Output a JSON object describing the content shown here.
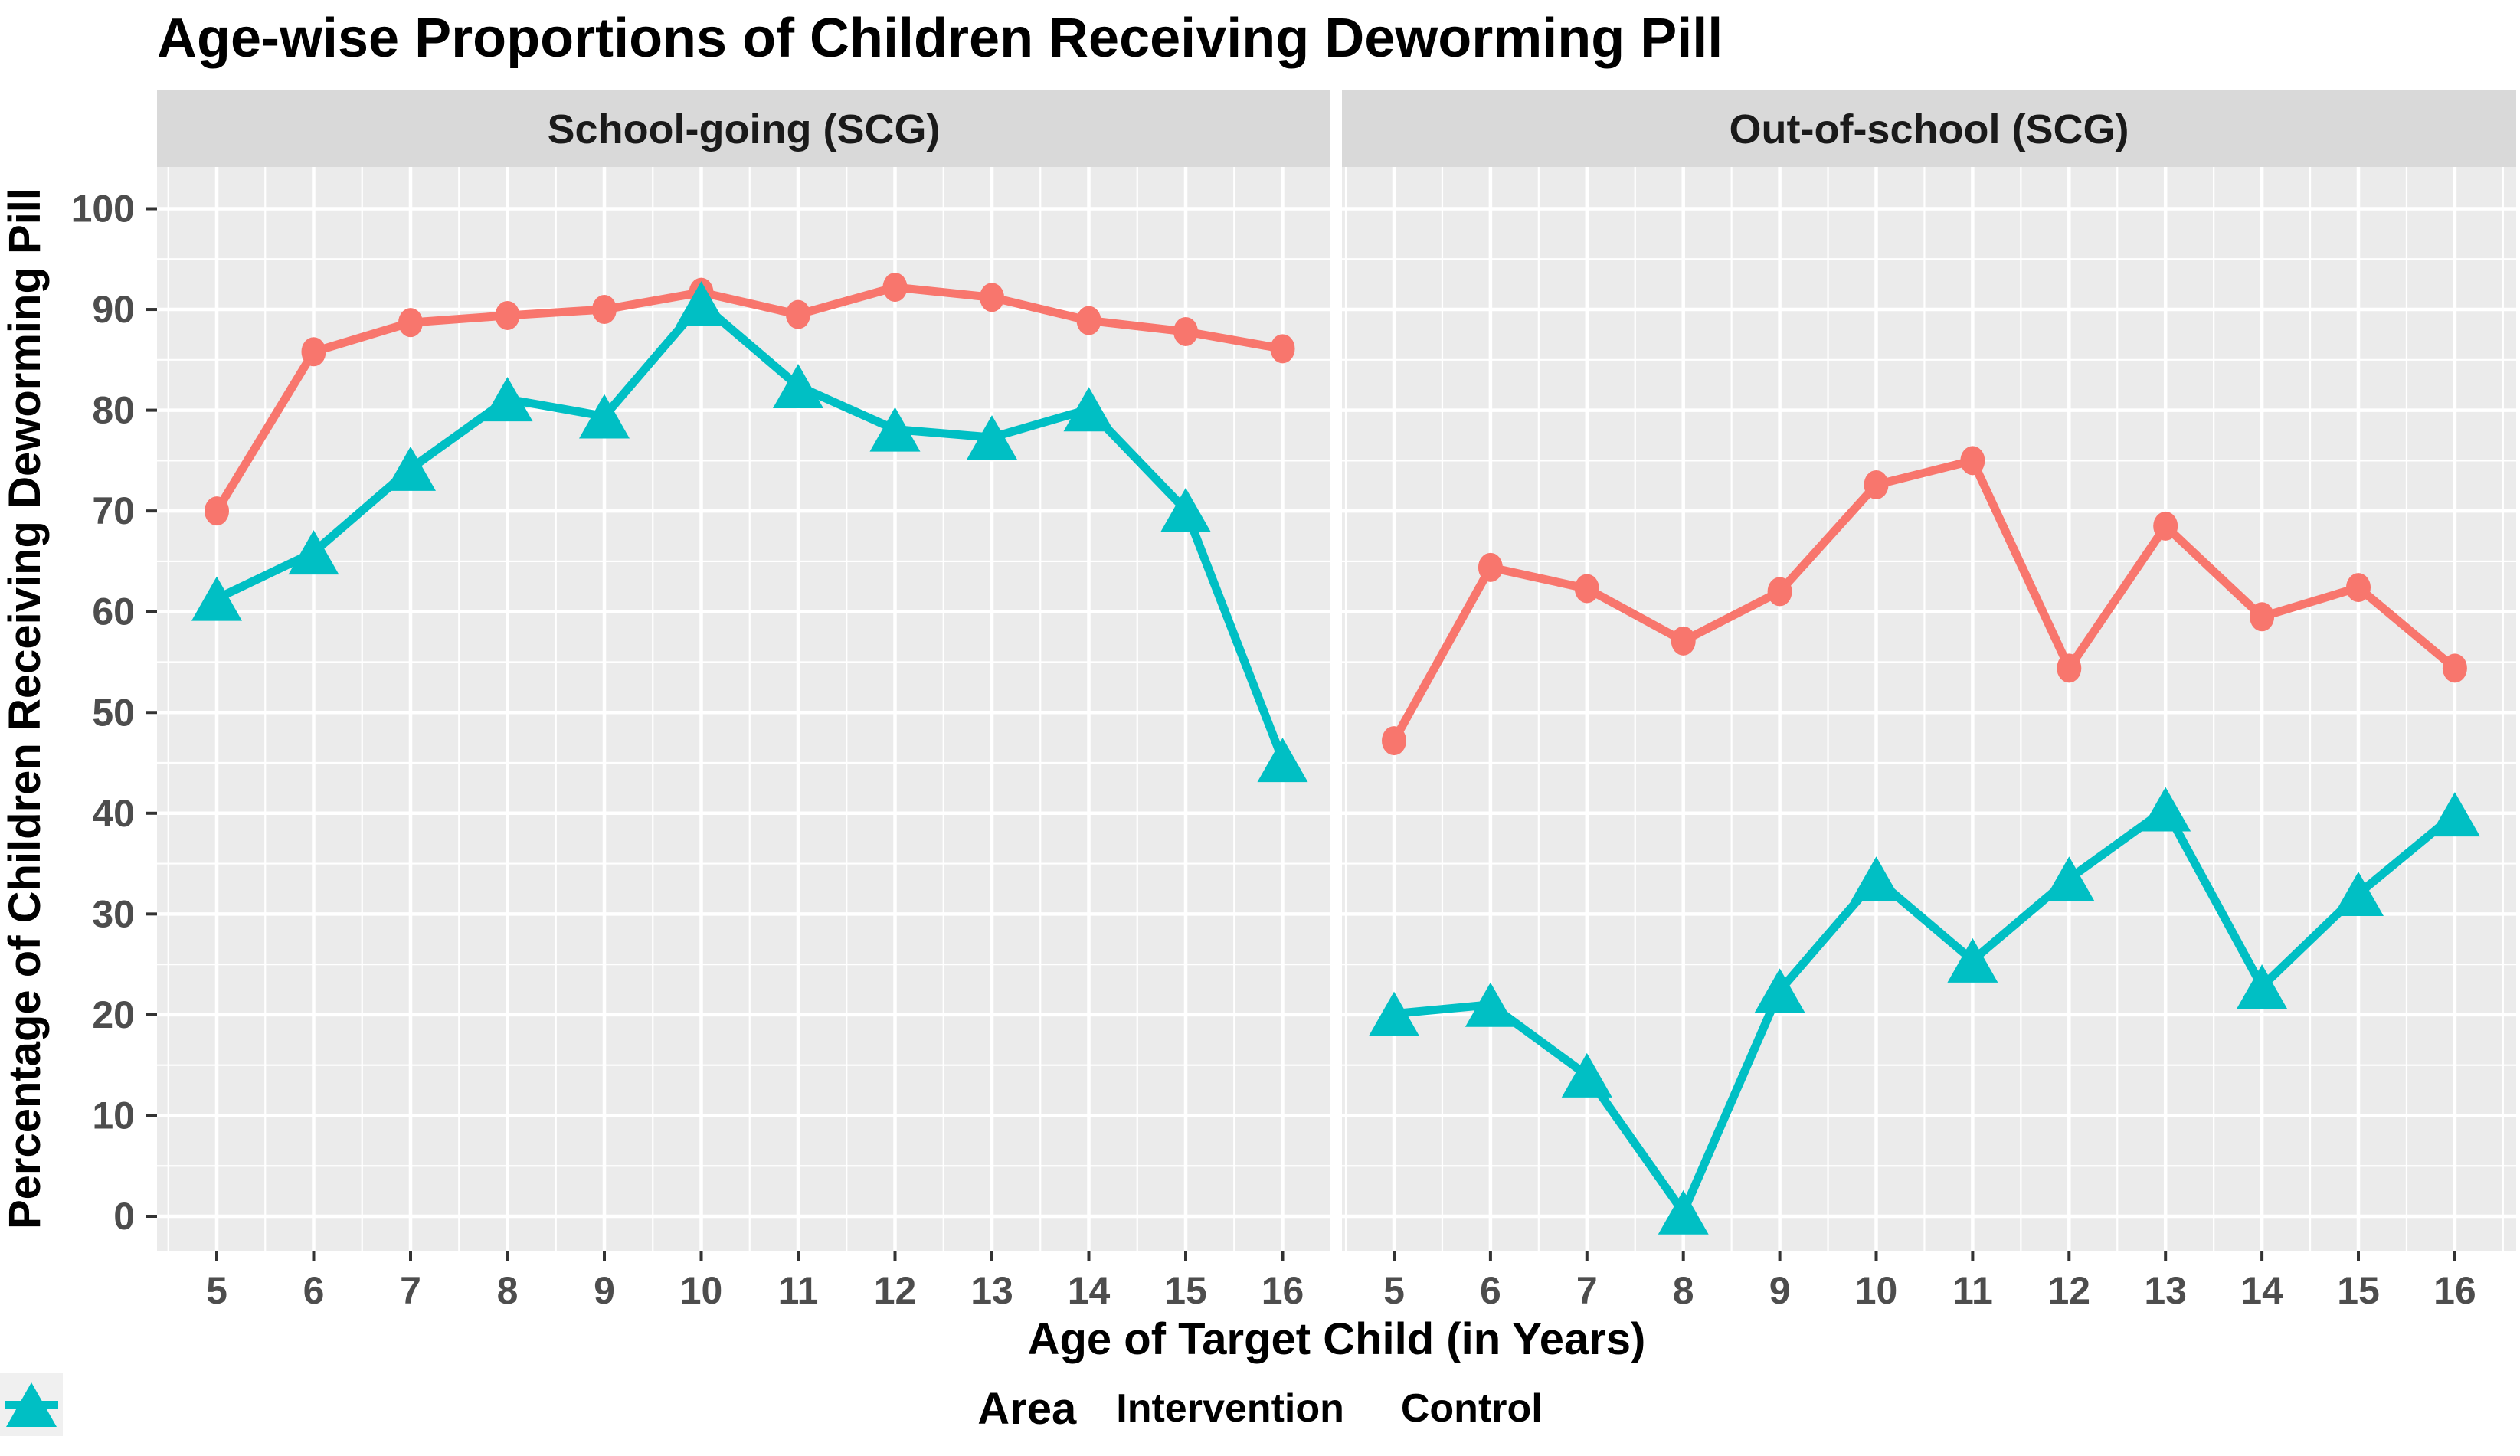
{
  "chart_data": {
    "type": "line",
    "title": "Age-wise Proportions of Children Receiving Deworming Pill",
    "xlabel": "Age of Target Child (in Years)",
    "ylabel": "Percentage of Children Receiving Deworming Pill",
    "x": [
      5,
      6,
      7,
      8,
      9,
      10,
      11,
      12,
      13,
      14,
      15,
      16
    ],
    "ylim": [
      0,
      100
    ],
    "yticks": [
      0,
      10,
      20,
      30,
      40,
      50,
      60,
      70,
      80,
      90,
      100
    ],
    "grid": "white major and minor gridlines on gray panel",
    "legend": {
      "title": "Area",
      "position": "bottom",
      "entries": [
        {
          "label": "Intervention",
          "color": "#F8766D",
          "marker": "circle"
        },
        {
          "label": "Control",
          "color": "#00BFC4",
          "marker": "triangle"
        }
      ]
    },
    "facets": [
      {
        "label": "School-going (SCG)",
        "series": [
          {
            "name": "Intervention",
            "values": [
              70.0,
              85.8,
              88.7,
              89.4,
              90.0,
              91.7,
              89.5,
              92.2,
              91.2,
              88.9,
              87.8,
              86.1
            ]
          },
          {
            "name": "Control",
            "values": [
              61.3,
              65.9,
              74.2,
              81.1,
              79.4,
              90.6,
              82.4,
              78.1,
              77.3,
              80.1,
              70.1,
              45.3
            ]
          }
        ]
      },
      {
        "label": "Out-of-school (SCG)",
        "series": [
          {
            "name": "Intervention",
            "values": [
              47.2,
              64.4,
              62.3,
              57.1,
              62.0,
              72.6,
              75.0,
              54.4,
              68.5,
              59.5,
              62.4,
              54.4
            ]
          },
          {
            "name": "Control",
            "values": [
              20.1,
              21.0,
              14.0,
              0.4,
              22.4,
              33.5,
              25.4,
              33.5,
              40.4,
              22.8,
              32.0,
              39.9
            ]
          }
        ]
      }
    ],
    "colors": {
      "intervention": "#F8766D",
      "control": "#00BFC4",
      "panel_bg": "#EBEBEB",
      "strip_bg": "#D9D9D9",
      "gridline": "#FFFFFF",
      "tick_text": "#4D4D4D",
      "tick_mark": "#333333",
      "text": "#000000",
      "legend_key_bg": "#F0F0F0"
    }
  }
}
